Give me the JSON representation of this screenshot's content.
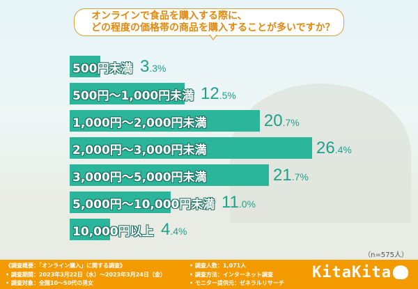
{
  "question": {
    "line1": "オンラインで食品を購入する際に、",
    "line2": "どの程度の価格帯の商品を購入することが多いですか？"
  },
  "chart_data": {
    "type": "bar",
    "orientation": "horizontal",
    "categories": [
      "500円未満",
      "500円～1,000円未満",
      "1,000円～2,000円未満",
      "2,000円～3,000円未満",
      "3,000円～5,000円未満",
      "5,000円～10,000円未満",
      "10,000円以上"
    ],
    "values": [
      3.3,
      12.5,
      20.7,
      26.4,
      21.7,
      11.0,
      4.4
    ],
    "value_labels": [
      [
        "3",
        ".3%"
      ],
      [
        "12",
        ".5%"
      ],
      [
        "20",
        ".7%"
      ],
      [
        "26",
        ".4%"
      ],
      [
        "21",
        ".7%"
      ],
      [
        "11",
        ".0%"
      ],
      [
        "4",
        ".4%"
      ]
    ],
    "unit": "%",
    "bar_color": "#2bb59a",
    "value_color": "#20a08a"
  },
  "sample": "（n=575人）",
  "footer": {
    "title": "《調査概要：「オンライン購入」に関する調査》",
    "period": "• 調査期間：2023年3月22日（水）～2023年3月24日（金）",
    "target": "• 調査対象：全国10～50代の男女",
    "method": "• 調査方法：インターネット調査",
    "provider": "• モニター提供元：ゼネラルリサーチ",
    "count": "• 調査人数：1,071人",
    "logo": "KitaKita",
    "color": "#f39a00"
  }
}
